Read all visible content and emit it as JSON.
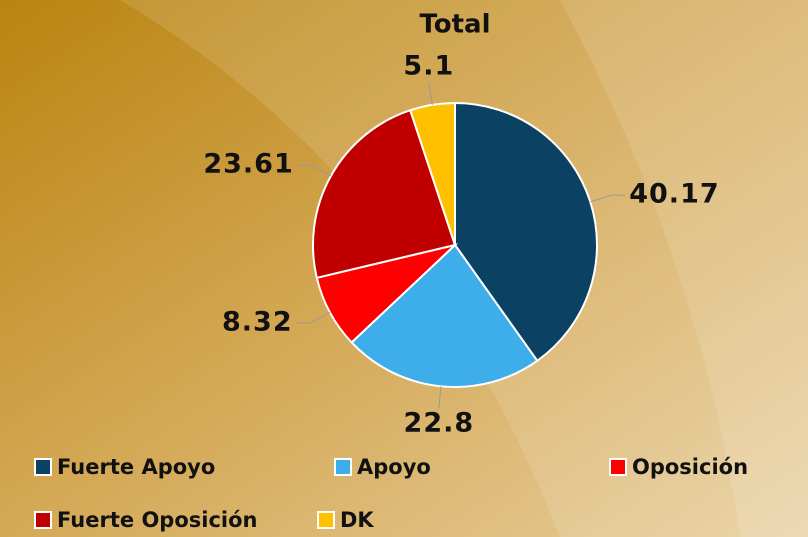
{
  "chart_data": {
    "type": "pie",
    "title": "Total",
    "categories": [
      "Fuerte Apoyo",
      "Apoyo",
      "Oposición",
      "Fuerte Oposición",
      "DK"
    ],
    "values": [
      40.17,
      22.8,
      8.32,
      23.61,
      5.1
    ],
    "colors": [
      "#0b4263",
      "#3daee9",
      "#ff0000",
      "#c00000",
      "#ffc000"
    ],
    "legend": "bottom"
  }
}
